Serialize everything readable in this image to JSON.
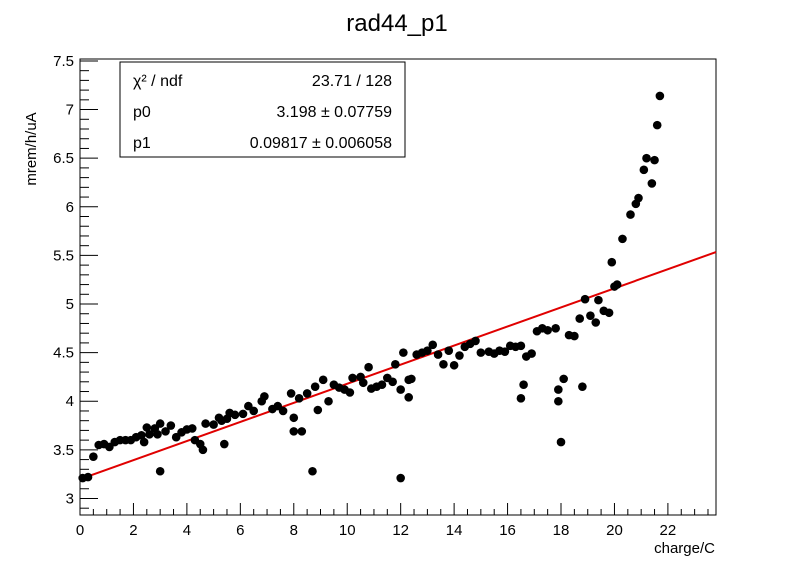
{
  "chart_data": {
    "type": "scatter",
    "title": "rad44_p1",
    "xlabel": "charge/C",
    "ylabel": "mrem/h/uA",
    "xlim": [
      0,
      23.8
    ],
    "ylim": [
      2.83,
      7.52
    ],
    "x_ticks": [
      0,
      2,
      4,
      6,
      8,
      10,
      12,
      14,
      16,
      18,
      20,
      22
    ],
    "y_ticks": [
      3,
      3.5,
      4,
      4.5,
      5,
      5.5,
      6,
      6.5,
      7,
      7.5
    ],
    "x_tick_labels": [
      "0",
      "2",
      "4",
      "6",
      "8",
      "10",
      "12",
      "14",
      "16",
      "18",
      "20",
      "22"
    ],
    "y_tick_labels": [
      "3",
      "3.5",
      "4",
      "4.5",
      "5",
      "5.5",
      "6",
      "6.5",
      "7",
      "7.5"
    ],
    "grid": false,
    "point_color": "#000000",
    "fit_color": "#e00000",
    "fit": {
      "type": "linear",
      "p0": 3.198,
      "p1": 0.09817,
      "x_range": [
        0,
        23.8
      ]
    },
    "stats_box": {
      "placement": "top-left",
      "rows": [
        {
          "name": "χ² / ndf",
          "value": "23.71 / 128"
        },
        {
          "name": "p0",
          "value": "3.198 ± 0.07759"
        },
        {
          "name": "p1",
          "value": "0.09817 ± 0.006058"
        }
      ]
    },
    "points": [
      [
        0.1,
        3.21
      ],
      [
        0.3,
        3.22
      ],
      [
        0.5,
        3.43
      ],
      [
        0.7,
        3.55
      ],
      [
        0.9,
        3.56
      ],
      [
        1.1,
        3.53
      ],
      [
        1.3,
        3.58
      ],
      [
        1.5,
        3.6
      ],
      [
        1.7,
        3.6
      ],
      [
        1.9,
        3.6
      ],
      [
        2.1,
        3.63
      ],
      [
        2.3,
        3.65
      ],
      [
        2.4,
        3.58
      ],
      [
        2.5,
        3.73
      ],
      [
        2.6,
        3.66
      ],
      [
        2.8,
        3.72
      ],
      [
        2.9,
        3.66
      ],
      [
        3.0,
        3.28
      ],
      [
        3.0,
        3.77
      ],
      [
        3.2,
        3.69
      ],
      [
        3.4,
        3.75
      ],
      [
        3.6,
        3.63
      ],
      [
        3.8,
        3.68
      ],
      [
        4.0,
        3.71
      ],
      [
        4.2,
        3.72
      ],
      [
        4.3,
        3.6
      ],
      [
        4.5,
        3.56
      ],
      [
        4.6,
        3.5
      ],
      [
        4.7,
        3.77
      ],
      [
        5.0,
        3.76
      ],
      [
        5.2,
        3.83
      ],
      [
        5.3,
        3.8
      ],
      [
        5.4,
        3.56
      ],
      [
        5.5,
        3.82
      ],
      [
        5.6,
        3.88
      ],
      [
        5.8,
        3.86
      ],
      [
        6.1,
        3.87
      ],
      [
        6.3,
        3.95
      ],
      [
        6.5,
        3.9
      ],
      [
        6.8,
        4.0
      ],
      [
        6.9,
        4.05
      ],
      [
        7.2,
        3.92
      ],
      [
        7.4,
        3.95
      ],
      [
        7.6,
        3.9
      ],
      [
        7.9,
        4.08
      ],
      [
        8.0,
        3.83
      ],
      [
        8.0,
        3.69
      ],
      [
        8.2,
        4.03
      ],
      [
        8.3,
        3.69
      ],
      [
        8.5,
        4.08
      ],
      [
        8.7,
        3.28
      ],
      [
        8.8,
        4.15
      ],
      [
        8.9,
        3.91
      ],
      [
        9.1,
        4.22
      ],
      [
        9.3,
        4.0
      ],
      [
        9.5,
        4.17
      ],
      [
        9.7,
        4.14
      ],
      [
        9.9,
        4.12
      ],
      [
        10.1,
        4.09
      ],
      [
        10.2,
        4.24
      ],
      [
        10.5,
        4.25
      ],
      [
        10.6,
        4.19
      ],
      [
        10.8,
        4.35
      ],
      [
        10.9,
        4.13
      ],
      [
        11.1,
        4.15
      ],
      [
        11.3,
        4.17
      ],
      [
        11.5,
        4.24
      ],
      [
        11.7,
        4.2
      ],
      [
        11.8,
        4.38
      ],
      [
        12.0,
        3.21
      ],
      [
        12.0,
        4.12
      ],
      [
        12.1,
        4.5
      ],
      [
        12.3,
        4.22
      ],
      [
        12.3,
        4.04
      ],
      [
        12.4,
        4.23
      ],
      [
        12.6,
        4.48
      ],
      [
        12.8,
        4.5
      ],
      [
        13.0,
        4.52
      ],
      [
        13.2,
        4.58
      ],
      [
        13.4,
        4.48
      ],
      [
        13.6,
        4.38
      ],
      [
        13.8,
        4.52
      ],
      [
        14.0,
        4.37
      ],
      [
        14.2,
        4.47
      ],
      [
        14.4,
        4.56
      ],
      [
        14.6,
        4.59
      ],
      [
        14.8,
        4.62
      ],
      [
        15.0,
        4.5
      ],
      [
        15.3,
        4.51
      ],
      [
        15.5,
        4.49
      ],
      [
        15.7,
        4.52
      ],
      [
        15.9,
        4.51
      ],
      [
        16.1,
        4.57
      ],
      [
        16.3,
        4.56
      ],
      [
        16.5,
        4.57
      ],
      [
        16.5,
        4.03
      ],
      [
        16.6,
        4.17
      ],
      [
        16.7,
        4.46
      ],
      [
        16.9,
        4.49
      ],
      [
        17.1,
        4.72
      ],
      [
        17.3,
        4.75
      ],
      [
        17.5,
        4.73
      ],
      [
        17.8,
        4.75
      ],
      [
        17.9,
        4.12
      ],
      [
        17.9,
        4.0
      ],
      [
        18.0,
        3.58
      ],
      [
        18.1,
        4.23
      ],
      [
        18.3,
        4.68
      ],
      [
        18.5,
        4.67
      ],
      [
        18.7,
        4.85
      ],
      [
        18.8,
        4.15
      ],
      [
        18.9,
        5.05
      ],
      [
        19.1,
        4.88
      ],
      [
        19.3,
        4.81
      ],
      [
        19.4,
        5.04
      ],
      [
        19.6,
        4.93
      ],
      [
        19.8,
        4.91
      ],
      [
        19.9,
        5.43
      ],
      [
        20.0,
        5.18
      ],
      [
        20.1,
        5.2
      ],
      [
        20.3,
        5.67
      ],
      [
        20.6,
        5.92
      ],
      [
        20.8,
        6.03
      ],
      [
        20.9,
        6.09
      ],
      [
        21.1,
        6.38
      ],
      [
        21.2,
        6.5
      ],
      [
        21.4,
        6.24
      ],
      [
        21.5,
        6.48
      ],
      [
        21.6,
        6.84
      ],
      [
        21.7,
        7.14
      ]
    ]
  }
}
